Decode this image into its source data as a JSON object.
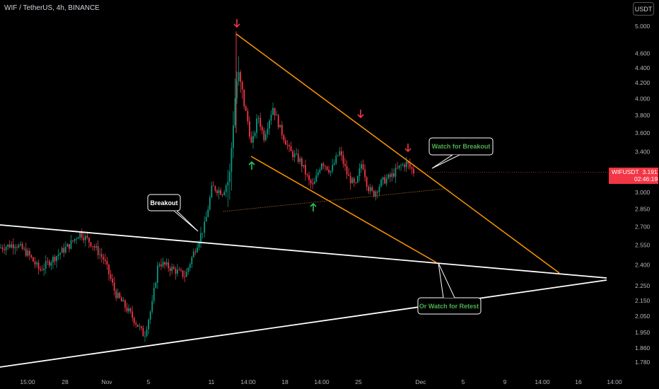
{
  "header": {
    "symbol_label": "WIF / TetherUS, 4h, BINANCE",
    "currency_button": "USDT"
  },
  "price_tag": {
    "symbol": "WIFUSDT",
    "price": "3.191",
    "countdown": "02:46:19"
  },
  "chart_data": {
    "type": "candlestick",
    "title": "WIF / TetherUS, 4h, BINANCE",
    "y_axis": {
      "ticks": [
        "5.000",
        "4.600",
        "4.400",
        "4.200",
        "4.000",
        "3.800",
        "3.600",
        "3.400",
        "3.200",
        "3.000",
        "2.850",
        "2.700",
        "2.550",
        "2.400",
        "2.250",
        "2.150",
        "2.050",
        "1.950",
        "1.860",
        "1.780"
      ],
      "range": [
        1.74,
        5.25
      ],
      "scale": "log"
    },
    "x_axis": {
      "ticks": [
        "15:00",
        "28",
        "Nov",
        "5",
        "11",
        "14:00",
        "18",
        "14:00",
        "25",
        "Dec",
        "5",
        "9",
        "14:00",
        "16",
        "14:00"
      ]
    },
    "last_price": 3.191,
    "annotations": [
      {
        "text": "Breakout",
        "color": "#ffffff"
      },
      {
        "text": "Watch for Breakout",
        "color": "#4caf50"
      },
      {
        "text": "Or Watch for Retest",
        "color": "#4caf50"
      }
    ],
    "colors": {
      "up": "#089981",
      "down": "#f23645",
      "channel": "#ff9800",
      "triangle": "#ffffff",
      "arrow_up": "#22c55e",
      "arrow_down": "#f23645"
    },
    "arrows": {
      "down_count": 3,
      "up_count": 2
    }
  }
}
